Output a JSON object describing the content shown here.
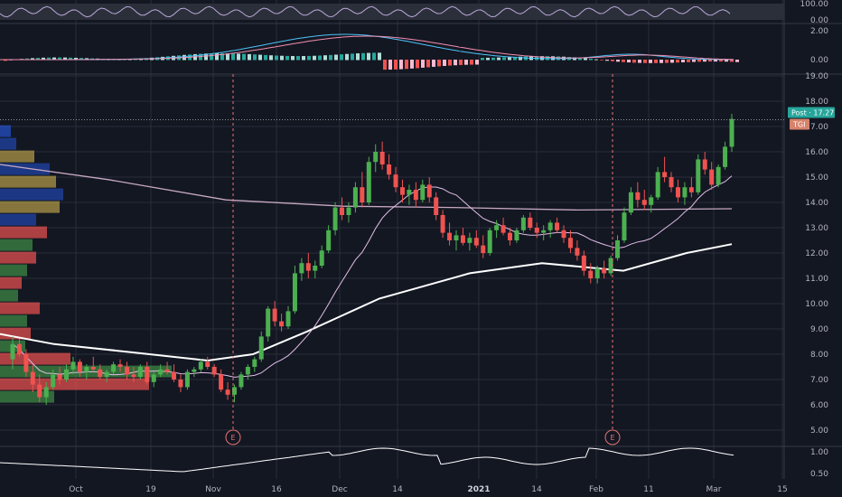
{
  "colors": {
    "background": "#131722",
    "grid": "#2a2e39",
    "up": "#26a69a",
    "up_candle": "#4caf50",
    "down_candle": "#ef5350",
    "sma_slow": "#ffffff",
    "sma_mid": "#d1c4e9",
    "sma_fast": "#e1bee7",
    "price_label_bg": "#1e88e5",
    "price_label_post": "#26a69a",
    "tgi_label": "#d7826a",
    "earnings": "#e57373"
  },
  "price_axis": {
    "ticks": [
      "19.00",
      "18.00",
      "17.00",
      "16.00",
      "15.00",
      "14.00",
      "13.00",
      "12.00",
      "11.00",
      "10.00",
      "9.00",
      "8.00",
      "7.00",
      "6.00",
      "5.00"
    ],
    "current_price": 17.27,
    "post_label": "Post",
    "post_value": "17.27",
    "symbol_label": "TGI"
  },
  "rsi_axis": {
    "ticks": [
      "100.00",
      "0.00"
    ]
  },
  "macd_axis": {
    "ticks": [
      "2.00",
      "0.00"
    ]
  },
  "lower_axis": {
    "ticks": [
      "1.00",
      "0.50"
    ]
  },
  "time_axis": {
    "labels": [
      {
        "text": "Oct",
        "bold": false
      },
      {
        "text": "19",
        "bold": false
      },
      {
        "text": "Nov",
        "bold": false
      },
      {
        "text": "16",
        "bold": false
      },
      {
        "text": "Dec",
        "bold": false
      },
      {
        "text": "14",
        "bold": false
      },
      {
        "text": "2021",
        "bold": true
      },
      {
        "text": "14",
        "bold": false
      },
      {
        "text": "Feb",
        "bold": false
      },
      {
        "text": "11",
        "bold": false
      },
      {
        "text": "Mar",
        "bold": false
      },
      {
        "text": "15",
        "bold": false
      }
    ]
  },
  "earnings_markers": [
    {
      "label": "E",
      "date": "Nov 5"
    },
    {
      "label": "E",
      "date": "Feb 4"
    }
  ],
  "chart_data": {
    "type": "candlestick",
    "ylim": [
      4.5,
      19.3
    ],
    "candles": [
      [
        7.8,
        8.7,
        7.4,
        8.4
      ],
      [
        8.4,
        8.6,
        7.9,
        8.0
      ],
      [
        8.0,
        8.2,
        7.1,
        7.3
      ],
      [
        7.3,
        7.6,
        6.5,
        6.8
      ],
      [
        6.8,
        7.2,
        6.1,
        6.3
      ],
      [
        6.3,
        6.9,
        6.0,
        6.7
      ],
      [
        6.7,
        7.4,
        6.6,
        7.2
      ],
      [
        7.2,
        7.5,
        6.8,
        7.0
      ],
      [
        7.0,
        7.6,
        6.9,
        7.4
      ],
      [
        7.4,
        7.9,
        7.2,
        7.7
      ],
      [
        7.7,
        7.8,
        7.1,
        7.3
      ],
      [
        7.3,
        7.6,
        7.0,
        7.5
      ],
      [
        7.5,
        7.9,
        7.3,
        7.4
      ],
      [
        7.4,
        7.6,
        7.0,
        7.1
      ],
      [
        7.1,
        7.4,
        6.9,
        7.3
      ],
      [
        7.3,
        7.7,
        7.2,
        7.6
      ],
      [
        7.6,
        7.8,
        7.3,
        7.5
      ],
      [
        7.5,
        7.7,
        7.0,
        7.2
      ],
      [
        7.2,
        7.5,
        6.9,
        7.1
      ],
      [
        7.1,
        7.6,
        7.0,
        7.5
      ],
      [
        7.5,
        7.7,
        6.8,
        6.9
      ],
      [
        6.9,
        7.3,
        6.7,
        7.2
      ],
      [
        7.2,
        7.6,
        7.1,
        7.4
      ],
      [
        7.4,
        7.7,
        7.2,
        7.3
      ],
      [
        7.3,
        7.6,
        6.9,
        7.0
      ],
      [
        7.0,
        7.2,
        6.5,
        6.7
      ],
      [
        6.7,
        7.4,
        6.6,
        7.3
      ],
      [
        7.3,
        7.5,
        7.1,
        7.4
      ],
      [
        7.4,
        7.8,
        7.3,
        7.7
      ],
      [
        7.7,
        7.9,
        7.4,
        7.5
      ],
      [
        7.5,
        7.6,
        7.1,
        7.2
      ],
      [
        7.2,
        7.4,
        6.5,
        6.6
      ],
      [
        6.6,
        6.9,
        6.2,
        6.4
      ],
      [
        6.4,
        6.8,
        6.1,
        6.7
      ],
      [
        6.7,
        7.3,
        6.6,
        7.2
      ],
      [
        7.2,
        7.6,
        7.0,
        7.5
      ],
      [
        7.5,
        7.9,
        7.3,
        7.8
      ],
      [
        7.8,
        8.9,
        7.7,
        8.7
      ],
      [
        8.7,
        9.9,
        8.5,
        9.8
      ],
      [
        9.8,
        10.1,
        9.1,
        9.3
      ],
      [
        9.3,
        9.6,
        8.9,
        9.1
      ],
      [
        9.1,
        9.9,
        9.0,
        9.7
      ],
      [
        9.7,
        11.5,
        9.6,
        11.2
      ],
      [
        11.2,
        11.8,
        10.9,
        11.6
      ],
      [
        11.6,
        12.0,
        11.0,
        11.3
      ],
      [
        11.3,
        11.7,
        11.0,
        11.5
      ],
      [
        11.5,
        12.3,
        11.4,
        12.1
      ],
      [
        12.1,
        13.1,
        12.0,
        12.9
      ],
      [
        12.9,
        14.0,
        12.7,
        13.8
      ],
      [
        13.8,
        14.2,
        13.3,
        13.5
      ],
      [
        13.5,
        14.0,
        13.2,
        13.8
      ],
      [
        13.8,
        14.8,
        13.6,
        14.6
      ],
      [
        14.6,
        15.2,
        13.8,
        14.0
      ],
      [
        14.0,
        15.8,
        13.9,
        15.6
      ],
      [
        15.6,
        16.3,
        15.2,
        16.0
      ],
      [
        16.0,
        16.4,
        15.3,
        15.5
      ],
      [
        15.5,
        15.9,
        14.9,
        15.1
      ],
      [
        15.1,
        15.4,
        14.4,
        14.6
      ],
      [
        14.6,
        14.9,
        14.0,
        14.3
      ],
      [
        14.3,
        14.7,
        13.9,
        14.5
      ],
      [
        14.5,
        14.8,
        13.8,
        14.1
      ],
      [
        14.1,
        14.9,
        14.0,
        14.7
      ],
      [
        14.7,
        15.0,
        14.0,
        14.2
      ],
      [
        14.2,
        14.4,
        13.3,
        13.5
      ],
      [
        13.5,
        13.7,
        12.6,
        12.8
      ],
      [
        12.8,
        13.2,
        12.3,
        12.5
      ],
      [
        12.5,
        12.9,
        12.1,
        12.7
      ],
      [
        12.7,
        13.0,
        12.3,
        12.4
      ],
      [
        12.4,
        12.8,
        12.1,
        12.6
      ],
      [
        12.6,
        12.9,
        12.2,
        12.3
      ],
      [
        12.3,
        12.7,
        11.8,
        12.0
      ],
      [
        12.0,
        13.0,
        11.9,
        12.9
      ],
      [
        12.9,
        13.3,
        12.6,
        13.1
      ],
      [
        13.1,
        13.4,
        12.7,
        12.8
      ],
      [
        12.8,
        13.0,
        12.3,
        12.5
      ],
      [
        12.5,
        13.0,
        12.4,
        12.9
      ],
      [
        12.9,
        13.5,
        12.8,
        13.4
      ],
      [
        13.4,
        13.6,
        12.9,
        13.0
      ],
      [
        13.0,
        13.2,
        12.6,
        12.8
      ],
      [
        12.8,
        13.1,
        12.5,
        12.9
      ],
      [
        12.9,
        13.3,
        12.6,
        13.2
      ],
      [
        13.2,
        13.4,
        12.8,
        12.9
      ],
      [
        12.9,
        13.1,
        12.4,
        12.6
      ],
      [
        12.6,
        12.9,
        12.0,
        12.2
      ],
      [
        12.2,
        12.5,
        11.7,
        11.9
      ],
      [
        11.9,
        12.1,
        11.1,
        11.3
      ],
      [
        11.3,
        11.6,
        10.8,
        11.0
      ],
      [
        11.0,
        11.5,
        10.8,
        11.4
      ],
      [
        11.4,
        11.7,
        11.0,
        11.2
      ],
      [
        11.2,
        11.9,
        11.1,
        11.8
      ],
      [
        11.8,
        12.7,
        11.7,
        12.5
      ],
      [
        12.5,
        13.8,
        12.4,
        13.6
      ],
      [
        13.6,
        14.6,
        13.5,
        14.4
      ],
      [
        14.4,
        14.8,
        13.8,
        14.1
      ],
      [
        14.1,
        14.5,
        13.7,
        13.9
      ],
      [
        13.9,
        14.3,
        13.6,
        14.2
      ],
      [
        14.2,
        15.4,
        14.1,
        15.2
      ],
      [
        15.2,
        15.8,
        14.8,
        15.0
      ],
      [
        15.0,
        15.2,
        14.4,
        14.6
      ],
      [
        14.6,
        14.9,
        14.0,
        14.2
      ],
      [
        14.2,
        14.8,
        13.9,
        14.6
      ],
      [
        14.6,
        15.0,
        14.2,
        14.4
      ],
      [
        14.4,
        15.9,
        14.3,
        15.7
      ],
      [
        15.7,
        16.0,
        15.1,
        15.3
      ],
      [
        15.3,
        15.6,
        14.5,
        14.7
      ],
      [
        14.7,
        15.5,
        14.6,
        15.4
      ],
      [
        15.4,
        16.4,
        15.3,
        16.2
      ],
      [
        16.2,
        17.5,
        16.0,
        17.3
      ]
    ]
  }
}
